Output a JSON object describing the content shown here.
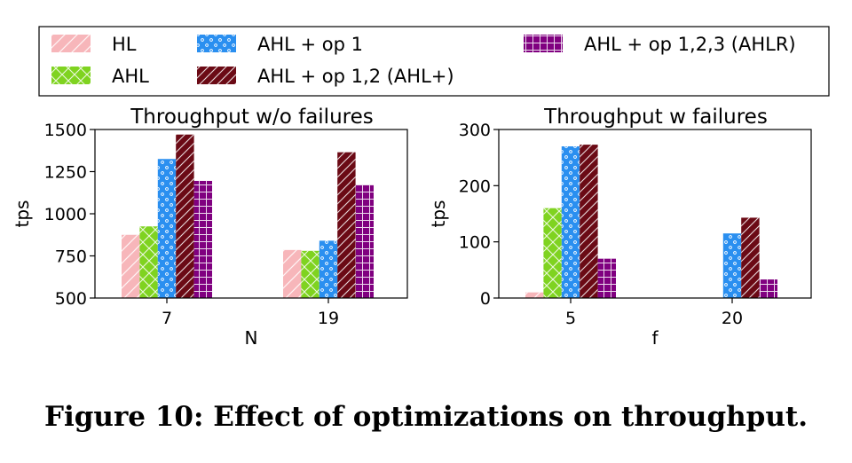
{
  "figure_caption": "Figure 10: Effect of optimizations on throughput.",
  "legend": [
    {
      "label": "HL",
      "color": "#f7b6ba",
      "pattern": "diag-single"
    },
    {
      "label": "AHL + op 1",
      "color": "#2a8ff0",
      "pattern": "dots"
    },
    {
      "label": "AHL + op 1,2,3 (AHLR)",
      "color": "#800080",
      "pattern": "grid"
    },
    {
      "label": "AHL",
      "color": "#7fd320",
      "pattern": "cross"
    },
    {
      "label": "AHL + op 1,2 (AHL+)",
      "color": "#6b0a15",
      "pattern": "diag-double"
    }
  ],
  "chart_data": [
    {
      "type": "bar",
      "title": "Throughput w/o failures",
      "xlabel": "N",
      "ylabel": "tps",
      "categories": [
        "7",
        "19"
      ],
      "ylim": [
        500,
        1500
      ],
      "yticks": [
        "500",
        "750",
        "1000",
        "1250",
        "1500"
      ],
      "series": [
        {
          "name": "HL",
          "values": [
            875,
            785
          ]
        },
        {
          "name": "AHL",
          "values": [
            925,
            780
          ]
        },
        {
          "name": "AHL + op 1",
          "values": [
            1325,
            840
          ]
        },
        {
          "name": "AHL + op 1,2 (AHL+)",
          "values": [
            1470,
            1365
          ]
        },
        {
          "name": "AHL + op 1,2,3 (AHLR)",
          "values": [
            1195,
            1170
          ]
        }
      ]
    },
    {
      "type": "bar",
      "title": "Throughput w failures",
      "xlabel": "f",
      "ylabel": "tps",
      "categories": [
        "5",
        "20"
      ],
      "ylim": [
        0,
        300
      ],
      "yticks": [
        "0",
        "100",
        "200",
        "300"
      ],
      "series": [
        {
          "name": "HL",
          "values": [
            10,
            0
          ]
        },
        {
          "name": "AHL",
          "values": [
            160,
            0
          ]
        },
        {
          "name": "AHL + op 1",
          "values": [
            270,
            115
          ]
        },
        {
          "name": "AHL + op 1,2 (AHL+)",
          "values": [
            273,
            143
          ]
        },
        {
          "name": "AHL + op 1,2,3 (AHLR)",
          "values": [
            70,
            33
          ]
        }
      ]
    }
  ]
}
